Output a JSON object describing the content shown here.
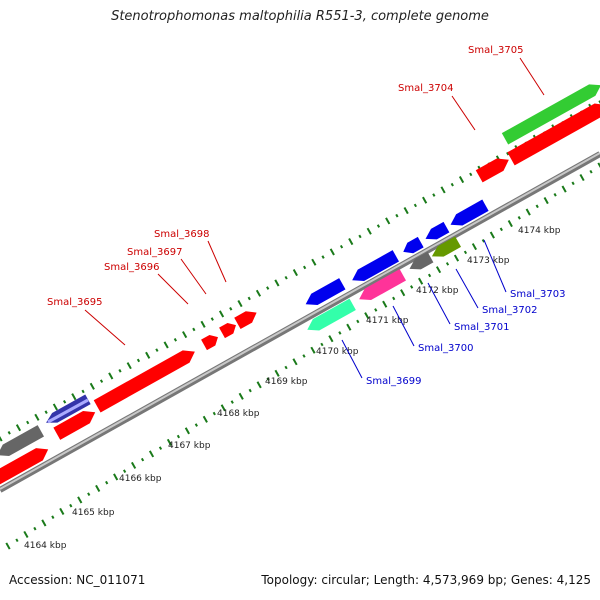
{
  "title": "Stenotrophomonas maltophilia R551-3, complete genome",
  "accession": "Accession: NC_011071",
  "summary": "Topology: circular; Length: 4,573,969 bp; Genes: 4,125",
  "colors": {
    "forward_label": "#cc0000",
    "reverse_label": "#0000cc",
    "backbone": "#999999",
    "tick": "#1a7a1a"
  },
  "scale_labels": [
    "4164 kbp",
    "4165 kbp",
    "4166 kbp",
    "4167 kbp",
    "4168 kbp",
    "4169 kbp",
    "4170 kbp",
    "4171 kbp",
    "4172 kbp",
    "4173 kbp",
    "4174 kbp"
  ],
  "genes_forward": [
    {
      "label": "Smal_3695",
      "color": "#ff0000"
    },
    {
      "label": "Smal_3696",
      "color": "#ff0000"
    },
    {
      "label": "Smal_3697",
      "color": "#ff0000"
    },
    {
      "label": "Smal_3698",
      "color": "#ff0000"
    },
    {
      "label": "Smal_3704",
      "color": "#ff0000"
    },
    {
      "label": "Smal_3705",
      "color": "#33cc33"
    }
  ],
  "genes_reverse": [
    {
      "label": "Smal_3699",
      "color": "#33ffaa"
    },
    {
      "label": "Smal_3700",
      "color": "#ff3399"
    },
    {
      "label": "Smal_3701",
      "color": "#666666"
    },
    {
      "label": "Smal_3702",
      "color": "#669900"
    },
    {
      "label": "Smal_3703",
      "color": "#0000ee"
    }
  ]
}
